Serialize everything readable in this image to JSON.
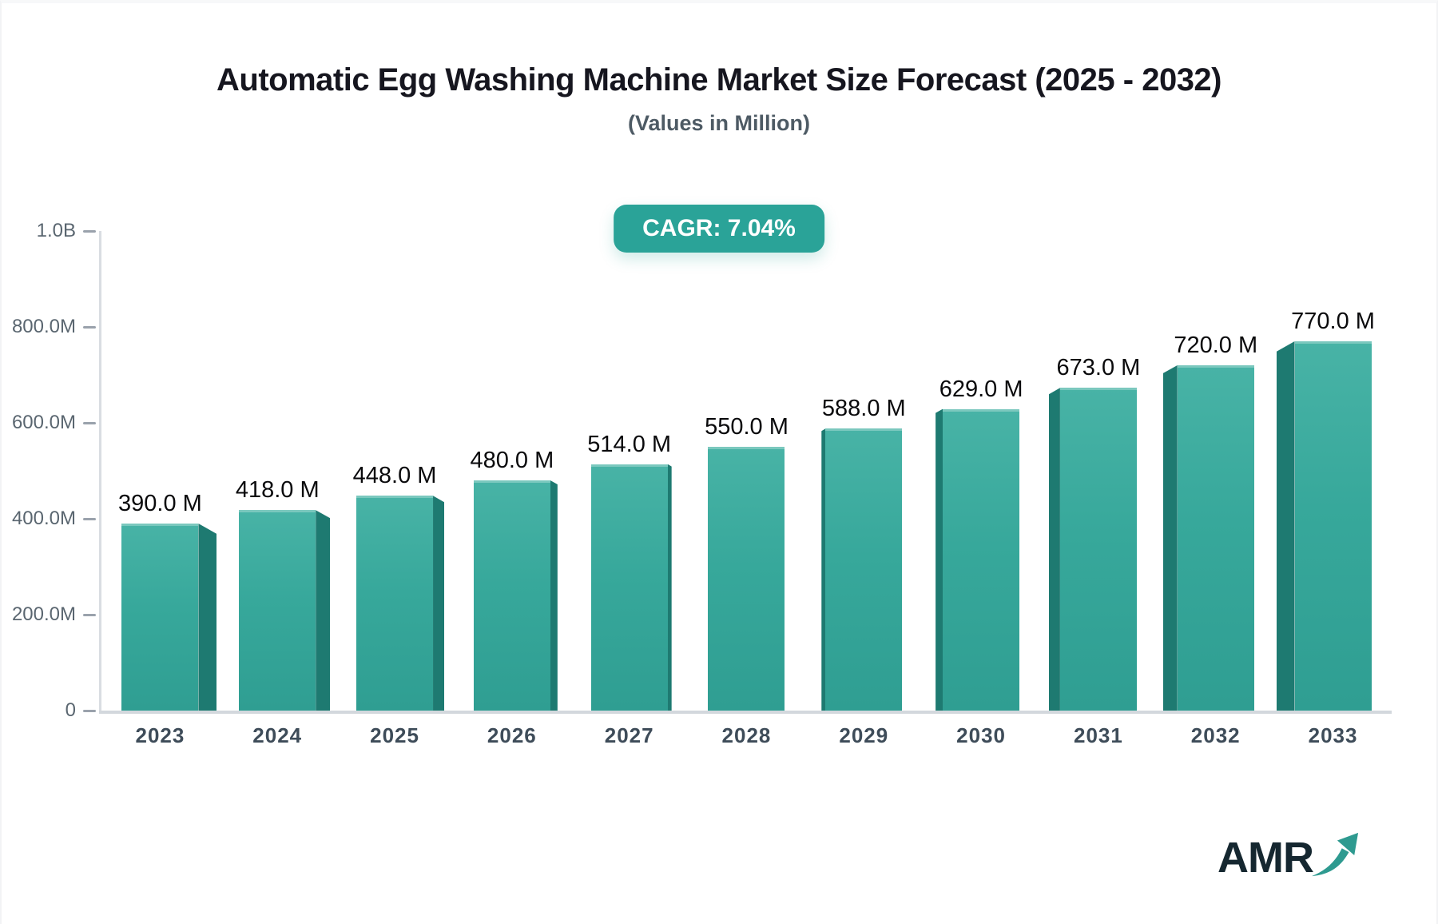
{
  "title": "Automatic Egg Washing Machine Market Size Forecast (2025 - 2032)",
  "subtitle": "(Values in Million)",
  "badge": {
    "label": "CAGR: 7.04%"
  },
  "logo": {
    "text": "AMR",
    "arrow_icon": "trend-up-arrow"
  },
  "colors": {
    "accent_teal": "#2aa398",
    "bar_face_top": "#48b3a6",
    "bar_face_bottom": "#2f9e92",
    "bar_side": "#1e7a71",
    "axis_line": "#d9dde2",
    "baseline": "#d3d8dd",
    "y_tick_label": "#5a6670",
    "x_tick_label": "#3e4c59",
    "data_label": "#0a0a0c",
    "logo_text": "#152730",
    "logo_arrow": "#2e9a90"
  },
  "chart_data": {
    "type": "bar",
    "title": "Automatic Egg Washing Machine Market Size Forecast (2025 - 2032)",
    "subtitle": "(Values in Million)",
    "categories": [
      "2023",
      "2024",
      "2025",
      "2026",
      "2027",
      "2028",
      "2029",
      "2030",
      "2031",
      "2032",
      "2033"
    ],
    "values": [
      390,
      418,
      448,
      480,
      514,
      550,
      588,
      629,
      673,
      720,
      770
    ],
    "value_labels": [
      "390.0 M",
      "418.0 M",
      "448.0 M",
      "480.0 M",
      "514.0 M",
      "550.0 M",
      "588.0 M",
      "629.0 M",
      "673.0 M",
      "720.0 M",
      "770.0 M"
    ],
    "units": "Million USD",
    "xlabel": "",
    "ylabel": "",
    "ylim": [
      0,
      1000
    ],
    "yticks": [
      {
        "value": 0,
        "label": "0"
      },
      {
        "value": 200,
        "label": "200.0M"
      },
      {
        "value": 400,
        "label": "400.0M"
      },
      {
        "value": 600,
        "label": "600.0M"
      },
      {
        "value": 800,
        "label": "800.0M"
      },
      {
        "value": 1000,
        "label": "1.0B"
      }
    ],
    "grid": false,
    "legend": false,
    "annotations": [
      "CAGR: 7.04%"
    ],
    "bar_style": "3d-center-perspective"
  }
}
